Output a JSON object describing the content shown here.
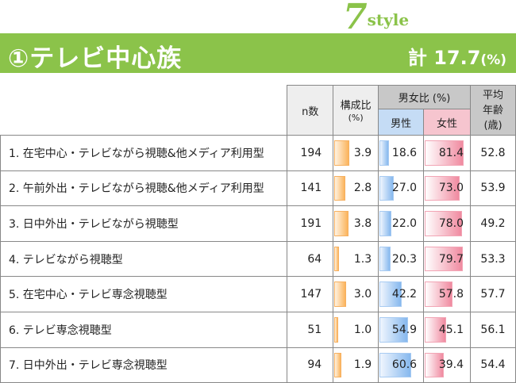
{
  "badge": {
    "num": "7",
    "word": "style"
  },
  "banner": {
    "title": "①テレビ中心族",
    "total_label": "計 17.7",
    "total_unit": "(%)"
  },
  "headers": {
    "n": "n数",
    "comp": "構成比",
    "comp_unit": "(%)",
    "gender": "男女比 (%)",
    "male": "男性",
    "female": "女性",
    "age1": "平均",
    "age2": "年齢",
    "age3": "(歳)"
  },
  "colors": {
    "green": "#8bc34a",
    "orange": "#fbb45c",
    "blue": "#86b8ee",
    "pink": "#f08aa0"
  },
  "rows": [
    {
      "label": "1. 在宅中心・テレビながら視聴&他メディア利用型",
      "n": "194",
      "comp": "3.9",
      "male": "18.6",
      "female": "81.4",
      "age": "52.8"
    },
    {
      "label": "2. 午前外出・テレビながら視聴&他メディア利用型",
      "n": "141",
      "comp": "2.8",
      "male": "27.0",
      "female": "73.0",
      "age": "53.9"
    },
    {
      "label": "3. 日中外出・テレビながら視聴型",
      "n": "191",
      "comp": "3.8",
      "male": "22.0",
      "female": "78.0",
      "age": "49.2"
    },
    {
      "label": "4. テレビながら視聴型",
      "n": "64",
      "comp": "1.3",
      "male": "20.3",
      "female": "79.7",
      "age": "53.3"
    },
    {
      "label": "5. 在宅中心・テレビ専念視聴型",
      "n": "147",
      "comp": "3.0",
      "male": "42.2",
      "female": "57.8",
      "age": "57.7"
    },
    {
      "label": "6. テレビ専念視聴型",
      "n": "51",
      "comp": "1.0",
      "male": "54.9",
      "female": "45.1",
      "age": "56.1"
    },
    {
      "label": "7. 日中外出・テレビ専念視聴型",
      "n": "94",
      "comp": "1.9",
      "male": "60.6",
      "female": "39.4",
      "age": "54.4"
    }
  ]
}
